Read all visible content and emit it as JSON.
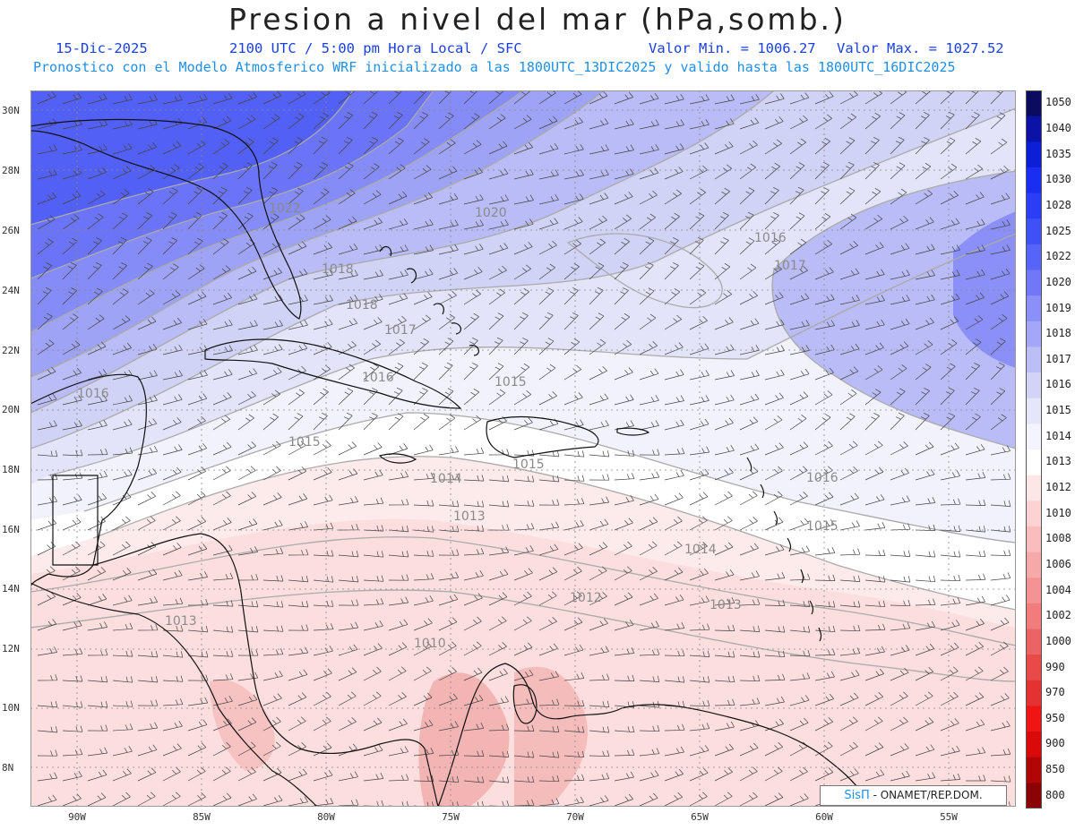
{
  "header": {
    "title": "Presion a nivel del mar (hPa,somb.)",
    "date": "15-Dic-2025",
    "time": "2100 UTC / 5:00 pm Hora Local / SFC",
    "valor_min": "Valor Min. = 1006.27",
    "valor_max": "Valor Max. = 1027.52",
    "forecast_info": "Pronostico con el Modelo Atmosferico WRF inicializado a las 1800UTC_13DIC2025 y valido hasta las  1800UTC_16DIC2025"
  },
  "lat_labels": [
    "30N",
    "28N",
    "26N",
    "24N",
    "22N",
    "20N",
    "18N",
    "16N",
    "14N",
    "12N",
    "10N",
    "8N"
  ],
  "lon_labels": [
    "90W",
    "85W",
    "80W",
    "75W",
    "70W",
    "65W",
    "60W",
    "55W"
  ],
  "colorbar": {
    "levels": [
      "1050",
      "1040",
      "1035",
      "1030",
      "1028",
      "1025",
      "1022",
      "1020",
      "1019",
      "1018",
      "1017",
      "1016",
      "1015",
      "1014",
      "1013",
      "1012",
      "1010",
      "1008",
      "1006",
      "1004",
      "1002",
      "1000",
      "990",
      "970",
      "950",
      "900",
      "850",
      "800"
    ],
    "colors": [
      "#0b0d5c",
      "#0a13a6",
      "#0c1ed6",
      "#1a2ef2",
      "#2b3ef5",
      "#3e51f7",
      "#5665f7",
      "#7078f7",
      "#8a90f7",
      "#a3a7f6",
      "#bcbef6",
      "#d2d3f7",
      "#e5e6fa",
      "#f4f4fd",
      "#ffffff",
      "#fde6e6",
      "#fcd2d2",
      "#f9bdbd",
      "#f6a9a9",
      "#f39393",
      "#f07c7c",
      "#ec6363",
      "#e84a4a",
      "#e43131",
      "#f01515",
      "#d80a0a",
      "#b00606",
      "#8a0404"
    ]
  },
  "contours": [
    {
      "label": "1022"
    },
    {
      "label": "1020"
    },
    {
      "label": "1018"
    },
    {
      "label": "1016"
    },
    {
      "label": "1017"
    },
    {
      "label": "1018"
    },
    {
      "label": "1017"
    },
    {
      "label": "1016"
    },
    {
      "label": "1015"
    },
    {
      "label": "1016"
    },
    {
      "label": "1015"
    },
    {
      "label": "1014"
    },
    {
      "label": "1013"
    },
    {
      "label": "1016"
    },
    {
      "label": "1015"
    },
    {
      "label": "1014"
    },
    {
      "label": "1012"
    },
    {
      "label": "1013"
    },
    {
      "label": "1013"
    },
    {
      "label": "1010"
    },
    {
      "label": "1015"
    }
  ],
  "credit": {
    "logo": "SisΠ",
    "text": "- ONAMET/REP.DOM."
  }
}
